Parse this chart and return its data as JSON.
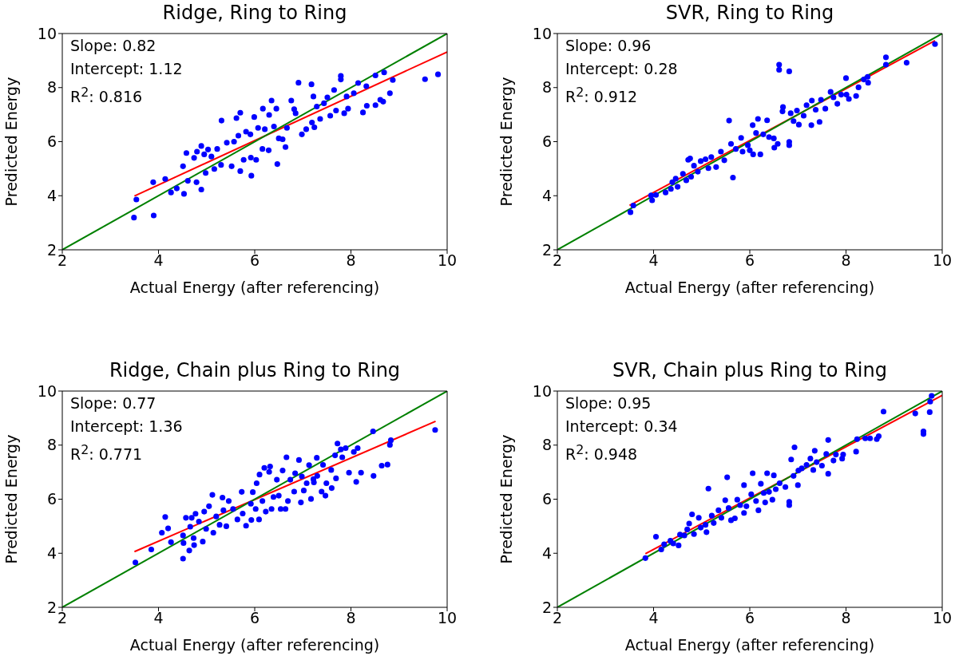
{
  "chart_data": [
    {
      "type": "scatter",
      "title": "Ridge, Ring to Ring",
      "xlabel": "Actual Energy (after referencing)",
      "ylabel": "Predicted Energy",
      "annotations": [
        "Slope: 0.82",
        "Intercept: 1.12",
        "R$^{2}$: 0.816"
      ],
      "xlim": [
        2,
        10
      ],
      "ylim": [
        2,
        10
      ],
      "xticks": [
        2,
        4,
        6,
        8,
        10
      ],
      "yticks": [
        2,
        4,
        6,
        8,
        10
      ],
      "series": [
        {
          "marker": "circle",
          "color": "#0000ff",
          "x": [
            3.49,
            3.54,
            3.9,
            3.89,
            4.14,
            4.26,
            4.38,
            4.53,
            4.51,
            4.58,
            4.61,
            4.74,
            4.8,
            4.89,
            4.89,
            4.79,
            4.95,
            5.03,
            4.98,
            5.1,
            5.16,
            5.22,
            5.31,
            5.3,
            5.42,
            5.52,
            5.57,
            5.62,
            5.66,
            5.7,
            5.7,
            5.77,
            5.82,
            5.91,
            5.93,
            5.92,
            5.99,
            6.03,
            6.07,
            6.16,
            6.17,
            6.21,
            6.29,
            6.3,
            6.35,
            6.4,
            6.45,
            6.47,
            6.5,
            6.58,
            6.64,
            6.67,
            6.76,
            6.82,
            6.85,
            6.91,
            6.98,
            7.07,
            7.18,
            7.19,
            7.22,
            7.24,
            7.29,
            7.36,
            7.44,
            7.51,
            7.57,
            7.65,
            7.69,
            7.79,
            7.79,
            7.86,
            7.91,
            7.94,
            8.06,
            8.15,
            8.25,
            8.32,
            8.33,
            8.51,
            8.51,
            8.61,
            8.67,
            8.69,
            8.81,
            8.87,
            9.54,
            9.81
          ],
          "values": [
            3.19,
            3.86,
            3.27,
            4.5,
            4.62,
            4.12,
            4.27,
            4.07,
            5.09,
            5.58,
            4.55,
            5.4,
            5.63,
            5.84,
            4.23,
            4.5,
            5.53,
            5.71,
            4.84,
            5.45,
            4.99,
            5.73,
            6.78,
            5.14,
            5.96,
            5.09,
            6.0,
            6.87,
            6.22,
            7.07,
            4.91,
            5.33,
            6.37,
            6.27,
            4.74,
            5.41,
            6.91,
            5.33,
            6.51,
            5.73,
            7.22,
            6.46,
            5.68,
            6.99,
            7.52,
            6.56,
            7.22,
            5.17,
            6.12,
            6.09,
            5.8,
            6.51,
            7.52,
            7.2,
            7.05,
            8.18,
            6.27,
            6.46,
            8.12,
            6.71,
            7.67,
            6.53,
            7.3,
            6.84,
            7.42,
            7.64,
            6.96,
            7.91,
            7.15,
            8.43,
            8.3,
            7.05,
            7.67,
            7.22,
            7.79,
            8.17,
            7.08,
            8.05,
            7.33,
            7.35,
            8.45,
            7.55,
            7.48,
            8.56,
            7.79,
            8.28,
            8.31,
            8.49
          ]
        },
        {
          "type": "line",
          "color": "#ff0000",
          "x": [
            3.5,
            10
          ],
          "values": [
            3.99,
            9.32
          ]
        },
        {
          "type": "line",
          "color": "#008000",
          "x": [
            2,
            10
          ],
          "values": [
            2,
            10
          ]
        }
      ]
    },
    {
      "type": "scatter",
      "title": "SVR, Ring to Ring",
      "xlabel": "Actual Energy (after referencing)",
      "ylabel": "Predicted Energy",
      "annotations": [
        "Slope: 0.96",
        "Intercept: 0.28",
        "R$^{2}$: 0.912"
      ],
      "xlim": [
        2,
        10
      ],
      "ylim": [
        2,
        10
      ],
      "xticks": [
        2,
        4,
        6,
        8,
        10
      ],
      "yticks": [
        2,
        4,
        6,
        8,
        10
      ],
      "series": [
        {
          "marker": "circle",
          "color": "#0000ff",
          "x": [
            3.52,
            3.58,
            3.95,
            3.97,
            4.05,
            4.25,
            4.36,
            4.39,
            4.46,
            4.5,
            4.61,
            4.68,
            4.72,
            4.76,
            4.78,
            4.84,
            4.92,
            4.98,
            5.08,
            5.14,
            5.2,
            5.3,
            5.4,
            5.47,
            5.57,
            5.61,
            5.65,
            5.71,
            5.82,
            5.85,
            5.96,
            6.0,
            6.06,
            6.07,
            6.13,
            6.17,
            6.22,
            6.28,
            6.36,
            6.4,
            6.5,
            6.51,
            6.58,
            6.61,
            6.61,
            6.68,
            6.69,
            6.82,
            6.82,
            6.82,
            6.85,
            6.91,
            6.98,
            7.02,
            7.12,
            7.18,
            7.28,
            7.29,
            7.37,
            7.45,
            7.48,
            7.57,
            7.68,
            7.74,
            7.82,
            7.9,
            8.0,
            8.01,
            8.06,
            8.21,
            8.26,
            8.37,
            8.45,
            8.46,
            8.83,
            8.83,
            9.26,
            9.85
          ],
          "values": [
            3.39,
            3.64,
            4.01,
            3.83,
            4.03,
            4.12,
            4.25,
            4.5,
            4.63,
            4.33,
            4.81,
            4.57,
            5.33,
            5.38,
            4.7,
            5.11,
            4.89,
            5.28,
            5.35,
            5.02,
            5.43,
            5.06,
            5.63,
            5.31,
            6.78,
            5.92,
            4.67,
            5.73,
            6.14,
            5.63,
            5.87,
            5.68,
            6.61,
            5.53,
            6.32,
            6.84,
            5.53,
            6.27,
            6.79,
            6.17,
            6.12,
            5.78,
            5.92,
            8.85,
            8.66,
            7.12,
            7.28,
            8.6,
            5.99,
            5.87,
            7.05,
            6.76,
            7.15,
            6.63,
            6.96,
            7.35,
            6.61,
            7.52,
            7.18,
            6.73,
            7.55,
            7.22,
            7.84,
            7.64,
            7.4,
            7.74,
            8.35,
            7.74,
            7.58,
            7.69,
            8.01,
            8.3,
            8.4,
            8.18,
            9.12,
            8.85,
            8.92,
            9.61
          ]
        },
        {
          "type": "line",
          "color": "#ff0000",
          "x": [
            3.5,
            9.85
          ],
          "values": [
            3.64,
            9.74
          ]
        },
        {
          "type": "line",
          "color": "#008000",
          "x": [
            2,
            10
          ],
          "values": [
            2,
            10
          ]
        }
      ]
    },
    {
      "type": "scatter",
      "title": "Ridge, Chain plus Ring to Ring",
      "xlabel": "Actual Energy (after referencing)",
      "ylabel": "Predicted Energy",
      "annotations": [
        "Slope: 0.77",
        "Intercept: 1.36",
        "R$^{2}$: 0.771"
      ],
      "xlim": [
        2,
        10
      ],
      "ylim": [
        2,
        10
      ],
      "xticks": [
        2,
        4,
        6,
        8,
        10
      ],
      "yticks": [
        2,
        4,
        6,
        8,
        10
      ],
      "series": [
        {
          "marker": "circle",
          "color": "#0000ff",
          "x": [
            3.52,
            3.85,
            4.07,
            4.14,
            4.2,
            4.26,
            4.51,
            4.51,
            4.52,
            4.57,
            4.64,
            4.66,
            4.69,
            4.73,
            4.74,
            4.77,
            4.84,
            4.92,
            4.95,
            4.99,
            5.05,
            5.12,
            5.14,
            5.2,
            5.27,
            5.33,
            5.35,
            5.41,
            5.46,
            5.55,
            5.64,
            5.73,
            5.75,
            5.82,
            5.92,
            5.93,
            5.96,
            6.02,
            6.04,
            6.09,
            6.1,
            6.16,
            6.2,
            6.23,
            6.3,
            6.32,
            6.35,
            6.39,
            6.46,
            6.5,
            6.54,
            6.58,
            6.64,
            6.66,
            6.69,
            6.74,
            6.82,
            6.84,
            6.92,
            6.96,
            6.98,
            7.02,
            7.08,
            7.13,
            7.17,
            7.22,
            7.23,
            7.29,
            7.3,
            7.39,
            7.42,
            7.47,
            7.49,
            7.59,
            7.6,
            7.67,
            7.69,
            7.72,
            7.79,
            7.82,
            7.89,
            7.96,
            8.06,
            8.11,
            8.14,
            8.21,
            8.46,
            8.47,
            8.64,
            8.76,
            8.81,
            8.83,
            9.75
          ],
          "values": [
            3.66,
            4.14,
            4.76,
            5.34,
            4.92,
            4.41,
            4.66,
            3.8,
            4.38,
            5.31,
            4.1,
            4.98,
            5.31,
            4.56,
            4.3,
            5.46,
            5.17,
            4.43,
            5.54,
            4.9,
            5.74,
            6.16,
            4.76,
            5.36,
            5.05,
            6.06,
            5.59,
            5.0,
            5.93,
            5.64,
            5.25,
            6.27,
            5.47,
            5.02,
            5.83,
            5.23,
            6.26,
            5.64,
            6.59,
            5.25,
            6.91,
            5.93,
            7.16,
            5.54,
            7.01,
            7.21,
            5.64,
            6.08,
            6.72,
            6.13,
            5.64,
            7.06,
            5.64,
            7.55,
            5.93,
            6.72,
            6.28,
            6.96,
            7.45,
            5.88,
            6.84,
            6.32,
            6.59,
            7.26,
            6.01,
            6.74,
            6.62,
            7.53,
            6.86,
            6.28,
            7.27,
            6.13,
            6.59,
            7.08,
            6.41,
            7.62,
            6.77,
            8.06,
            7.84,
            7.55,
            7.89,
            6.98,
            7.75,
            6.64,
            7.89,
            6.98,
            8.51,
            6.86,
            7.24,
            7.28,
            8.01,
            8.18,
            8.56
          ]
        },
        {
          "type": "line",
          "color": "#ff0000",
          "x": [
            3.5,
            9.76
          ],
          "values": [
            4.06,
            8.88
          ]
        },
        {
          "type": "line",
          "color": "#008000",
          "x": [
            2,
            10
          ],
          "values": [
            2,
            10
          ]
        }
      ]
    },
    {
      "type": "scatter",
      "title": "SVR, Chain plus Ring to Ring",
      "xlabel": "Actual Energy (after referencing)",
      "ylabel": "Predicted Energy",
      "annotations": [
        "Slope: 0.95",
        "Intercept: 0.34",
        "R$^{2}$: 0.948"
      ],
      "xlim": [
        2,
        10
      ],
      "ylim": [
        2,
        10
      ],
      "xticks": [
        2,
        4,
        6,
        8,
        10
      ],
      "yticks": [
        2,
        4,
        6,
        8,
        10
      ],
      "series": [
        {
          "marker": "circle",
          "color": "#0000ff",
          "x": [
            3.83,
            4.05,
            4.16,
            4.22,
            4.35,
            4.41,
            4.52,
            4.55,
            4.64,
            4.7,
            4.74,
            4.8,
            4.84,
            4.94,
            4.98,
            5.08,
            5.1,
            5.14,
            5.21,
            5.25,
            5.35,
            5.41,
            5.49,
            5.53,
            5.56,
            5.61,
            5.69,
            5.74,
            5.8,
            5.88,
            5.88,
            5.93,
            6.03,
            6.06,
            6.13,
            6.18,
            6.23,
            6.29,
            6.32,
            6.36,
            6.4,
            6.47,
            6.5,
            6.54,
            6.62,
            6.74,
            6.82,
            6.82,
            6.86,
            6.91,
            6.93,
            7.0,
            7.01,
            7.08,
            7.18,
            7.26,
            7.32,
            7.35,
            7.39,
            7.5,
            7.59,
            7.63,
            7.63,
            7.74,
            7.79,
            7.92,
            7.94,
            8.21,
            8.23,
            8.4,
            8.5,
            8.64,
            8.68,
            8.78,
            9.44,
            9.61,
            9.61,
            9.74,
            9.75,
            9.78
          ],
          "values": [
            3.82,
            4.61,
            4.14,
            4.33,
            4.46,
            4.36,
            4.29,
            4.69,
            4.66,
            4.88,
            5.1,
            5.44,
            4.71,
            5.31,
            4.95,
            5.05,
            4.78,
            6.39,
            5.39,
            5.12,
            5.59,
            5.31,
            5.96,
            6.81,
            5.67,
            5.22,
            5.29,
            5.98,
            5.78,
            6.52,
            5.49,
            5.74,
            6.18,
            6.96,
            5.93,
            5.59,
            6.57,
            6.23,
            5.88,
            6.96,
            6.27,
            5.98,
            6.88,
            6.37,
            6.59,
            6.45,
            5.9,
            5.78,
            7.47,
            6.86,
            7.92,
            6.52,
            7.06,
            7.14,
            7.27,
            7.5,
            7.08,
            7.79,
            7.37,
            7.24,
            7.67,
            8.19,
            6.94,
            7.43,
            7.65,
            7.5,
            7.65,
            7.76,
            8.22,
            8.25,
            8.25,
            8.22,
            8.33,
            9.24,
            9.17,
            8.51,
            8.41,
            9.22,
            9.61,
            9.82
          ]
        },
        {
          "type": "line",
          "color": "#ff0000",
          "x": [
            3.83,
            10
          ],
          "values": [
            3.98,
            9.84
          ]
        },
        {
          "type": "line",
          "color": "#008000",
          "x": [
            2,
            10
          ],
          "values": [
            2,
            10
          ]
        }
      ]
    }
  ]
}
